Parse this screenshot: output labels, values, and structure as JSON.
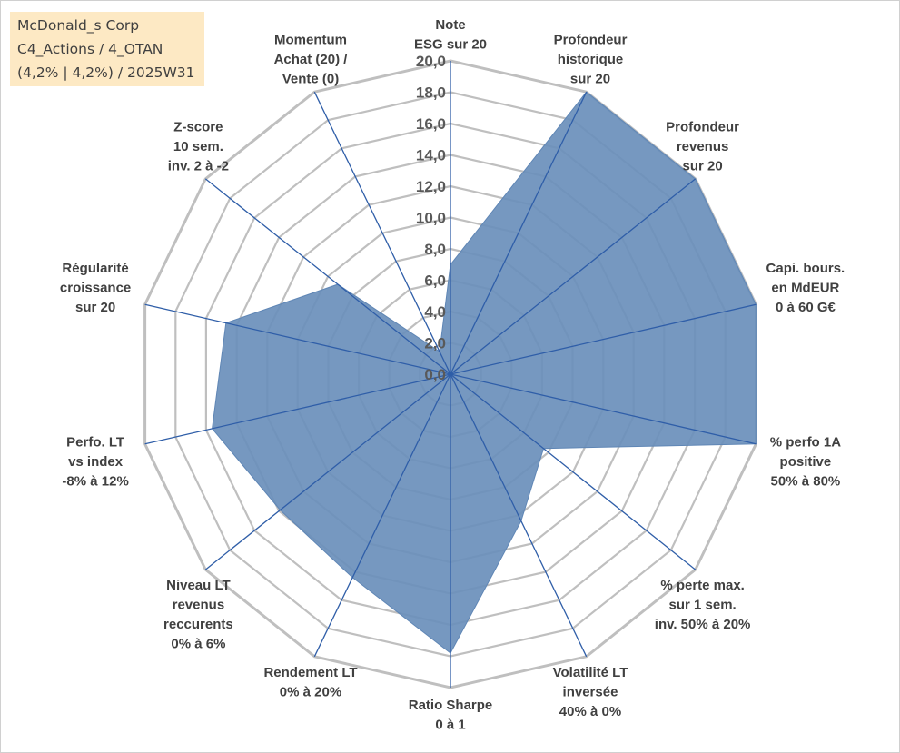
{
  "title": {
    "line1": "McDonald_s Corp",
    "line2": "C4_Actions / 4_OTAN",
    "line3": "(4,2% | 4,2%) / 2025W31"
  },
  "chart_data": {
    "type": "radar",
    "rmin": 0,
    "rmax": 20,
    "tick_step": 2,
    "tick_labels": [
      "0,0",
      "2,0",
      "4,0",
      "6,0",
      "8,0",
      "10,0",
      "12,0",
      "14,0",
      "16,0",
      "18,0",
      "20,0"
    ],
    "grid": true,
    "series_color": "#6a8fbb",
    "axes": [
      {
        "label": [
          "Note",
          "ESG sur 20"
        ],
        "value": 7
      },
      {
        "label": [
          "Profondeur",
          "historique",
          "sur 20"
        ],
        "value": 20
      },
      {
        "label": [
          "Profondeur",
          "revenus",
          "sur 20"
        ],
        "value": 20
      },
      {
        "label": [
          "Capi. bours.",
          "en MdEUR",
          "0 à 60 G€"
        ],
        "value": 20
      },
      {
        "label": [
          "% perfo 1A",
          "positive",
          "50% à 80%"
        ],
        "value": 20
      },
      {
        "label": [
          "% perte max.",
          "sur 1 sem.",
          "inv. 50% à 20%"
        ],
        "value": 7.6
      },
      {
        "label": [
          "Volatilité LT",
          "inversée",
          "40% à 0%"
        ],
        "value": 10.4
      },
      {
        "label": [
          "Ratio Sharpe",
          "0 à 1"
        ],
        "value": 17.8
      },
      {
        "label": [
          "Rendement LT",
          "0% à 20%"
        ],
        "value": 14.4
      },
      {
        "label": [
          "Niveau LT",
          "revenus",
          "reccurents",
          "0% à 6%"
        ],
        "value": 13.9
      },
      {
        "label": [
          "Perfo. LT",
          "vs index",
          "-8% à 12%"
        ],
        "value": 15.6
      },
      {
        "label": [
          "Régularité",
          "croissance",
          "sur 20"
        ],
        "value": 14.7
      },
      {
        "label": [
          "Z-score",
          "10 sem.",
          "inv. 2 à -2"
        ],
        "value": 9.2
      },
      {
        "label": [
          "Momentum",
          "Achat (20) /",
          "Vente (0)"
        ],
        "value": 1.6
      }
    ]
  }
}
